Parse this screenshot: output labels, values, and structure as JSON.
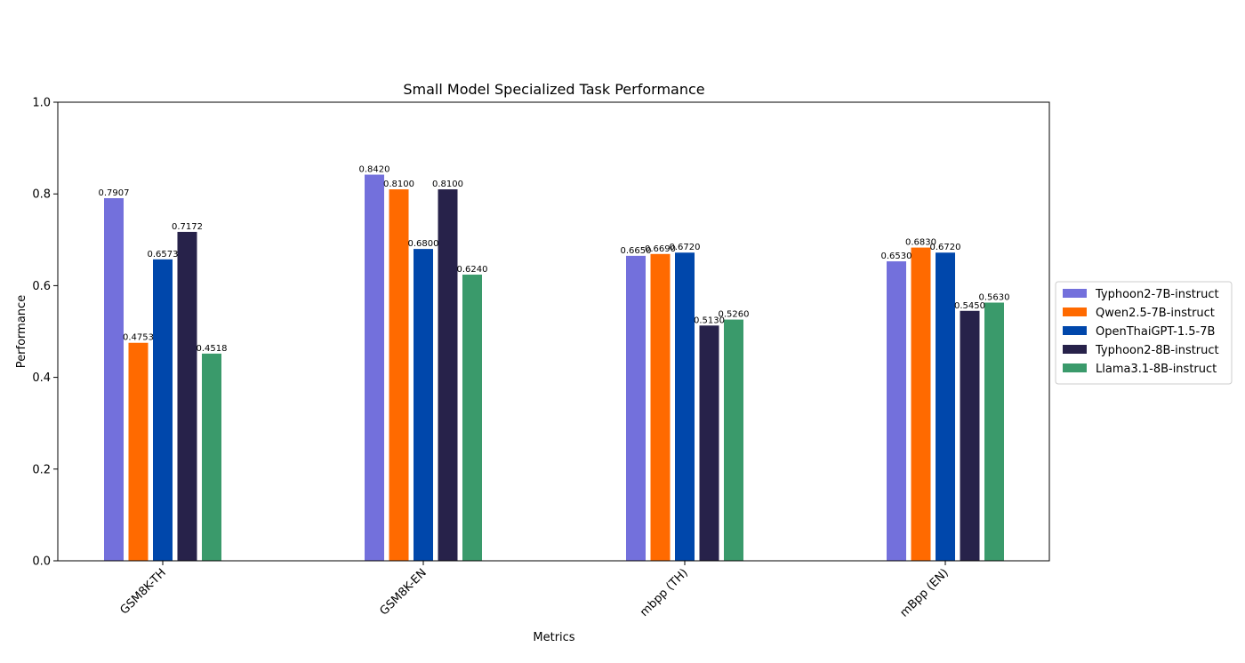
{
  "chart_data": {
    "type": "bar",
    "title": "Small Model Specialized Task Performance",
    "xlabel": "Metrics",
    "ylabel": "Performance",
    "ylim": [
      0,
      1.0
    ],
    "yticks": [
      "0.0",
      "0.2",
      "0.4",
      "0.6",
      "0.8",
      "1.0"
    ],
    "ytick_values": [
      0,
      0.2,
      0.4,
      0.6,
      0.8,
      1.0
    ],
    "categories": [
      "GSM8K-TH",
      "GSM8K-EN",
      "mbpp (TH)",
      "mBpp (EN)"
    ],
    "series": [
      {
        "name": "Typhoon2-7B-instruct",
        "color": "#7370dc",
        "values": [
          0.7907,
          0.842,
          0.665,
          0.653
        ],
        "labels": [
          "0.7907",
          "0.8420",
          "0.6650",
          "0.6530"
        ]
      },
      {
        "name": "Qwen2.5-7B-instruct",
        "color": "#ff6a00",
        "values": [
          0.4753,
          0.81,
          0.669,
          0.683
        ],
        "labels": [
          "0.4753",
          "0.8100",
          "0.6690",
          "0.6830"
        ]
      },
      {
        "name": "OpenThaiGPT-1.5-7B",
        "color": "#0047ab",
        "values": [
          0.6573,
          0.68,
          0.672,
          0.672
        ],
        "labels": [
          "0.6573",
          "0.6800",
          "0.6720",
          "0.6720"
        ]
      },
      {
        "name": "Typhoon2-8B-instruct",
        "color": "#27224a",
        "values": [
          0.7172,
          0.81,
          0.513,
          0.545
        ],
        "labels": [
          "0.7172",
          "0.8100",
          "0.5130",
          "0.5450"
        ]
      },
      {
        "name": "Llama3.1-8B-instruct",
        "color": "#3a9a6b",
        "values": [
          0.4518,
          0.624,
          0.526,
          0.563
        ],
        "labels": [
          "0.4518",
          "0.6240",
          "0.5260",
          "0.5630"
        ]
      }
    ],
    "grid": false,
    "legend_position": "center-right"
  }
}
